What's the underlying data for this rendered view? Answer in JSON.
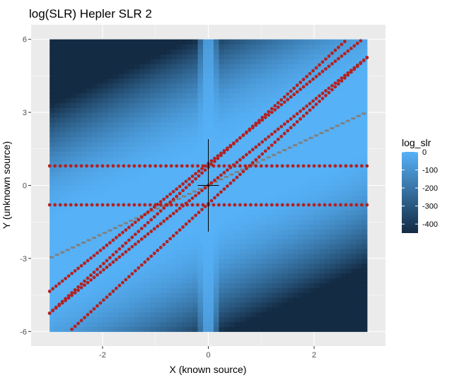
{
  "chart_data": {
    "type": "heatmap",
    "title": "log(SLR) Hepler SLR 2",
    "xlabel": "X (known source)",
    "ylabel": "Y (unknown source)",
    "xlim": [
      -3.35,
      3.35
    ],
    "ylim": [
      -6.6,
      6.6
    ],
    "x_ticks": [
      -2,
      0,
      2
    ],
    "x_tick_labels": [
      "-2",
      "0",
      "2"
    ],
    "y_ticks": [
      -6,
      -3,
      0,
      3,
      6
    ],
    "y_tick_labels": [
      "-6",
      "-3",
      "0",
      "3",
      "6"
    ],
    "grid": true,
    "panel_background": "#ebebeb",
    "heatmap": {
      "x_range": [
        -3,
        3
      ],
      "y_range": [
        -6,
        6
      ],
      "value_range": [
        -450,
        0
      ],
      "color_low": "#132b43",
      "color_high": "#56b1f7"
    },
    "legend": {
      "title": "log_slr",
      "position": "right",
      "ticks": [
        0,
        -100,
        -200,
        -300,
        -400
      ],
      "tick_labels": [
        "0",
        "-100",
        "-200",
        "-300",
        "-400"
      ]
    },
    "contour_color": "#b22222",
    "contours": {
      "horizontal_levels": [
        0.8,
        -0.8
      ],
      "diagonal_lines": [
        {
          "slope": 2.0,
          "intercept": 0.75
        },
        {
          "slope": 2.0,
          "intercept": -0.75
        },
        {
          "slope": 1.75,
          "intercept": 0.0
        },
        {
          "slope": 1.75,
          "intercept": 0.9
        }
      ]
    },
    "reference_line": {
      "color": "#808080",
      "slope": 1.0,
      "intercept": 0.0
    },
    "crosshair": {
      "x": 0,
      "y": 0,
      "color": "#000000"
    }
  }
}
